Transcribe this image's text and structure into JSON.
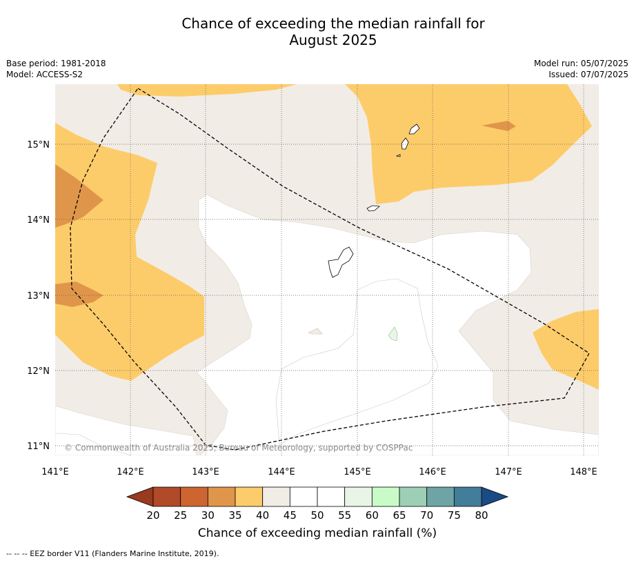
{
  "title_line1": "Chance of exceeding the median rainfall for",
  "title_line2": "August 2025",
  "meta_left": {
    "base_period": "Base period: 1981-2018",
    "model": "Model: ACCESS-S2"
  },
  "meta_right": {
    "model_run": "Model run: 05/07/2025",
    "issued": "Issued: 07/07/2025"
  },
  "axes": {
    "lon_ticks": [
      "141°E",
      "142°E",
      "143°E",
      "144°E",
      "145°E",
      "146°E",
      "147°E",
      "148°E"
    ],
    "lat_ticks": [
      "15°N",
      "14°N",
      "13°N",
      "12°N",
      "11°N"
    ]
  },
  "copyright": "© Commonwealth of Australia 2025, Bureau of Meteorology, supported by COSPPac",
  "colorbar": {
    "labels": [
      "20",
      "25",
      "30",
      "35",
      "40",
      "45",
      "50",
      "55",
      "60",
      "65",
      "70",
      "75",
      "80"
    ],
    "colors": [
      "#b04a28",
      "#cc6530",
      "#e0964a",
      "#fdcc6a",
      "#f1ece6",
      "#ffffff",
      "#ffffff",
      "#e9f5e6",
      "#c9fbc9",
      "#9ccfb6",
      "#6ea4a6",
      "#427d99"
    ],
    "under_color": "#9a3a1e",
    "over_color": "#1a4b85",
    "title": "Chance of exceeding median rainfall (%)"
  },
  "footnote": "-- -- -- EEZ border V11 (Flanders Marine Institute, 2019)."
}
